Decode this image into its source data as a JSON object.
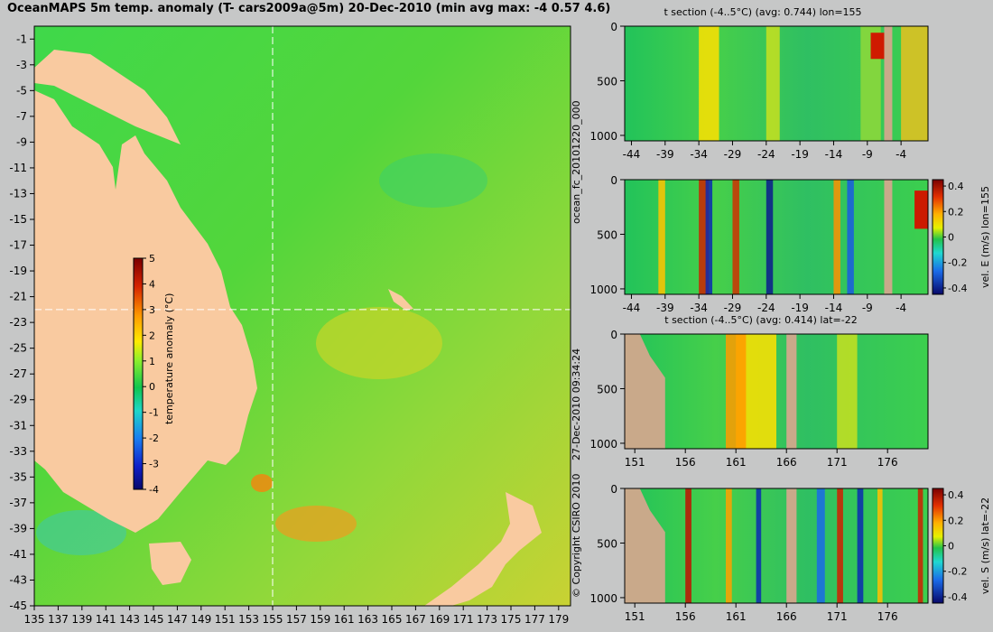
{
  "title": "OceanMAPS 5m temp. anomaly (T- cars2009a@5m) 20-Dec-2010 (min avg max: -4 0.57 4.6)",
  "side_labels": {
    "run_id": "ocean_fc_20101220_000",
    "generated": "27-Dec-2010 09:34:24",
    "copyright": "© Copyright CSIRO 2010"
  },
  "colors": {
    "land": "#f9caa0",
    "section_land": "#c9a98a",
    "background": "#c6c7c7",
    "crosshair": "#ffffff"
  },
  "chart_data": [
    {
      "type": "heatmap",
      "name": "map",
      "title": "OceanMAPS 5m temp. anomaly (T- cars2009a@5m) 20-Dec-2010 (min avg max: -4 0.57 4.6)",
      "x_ticks": [
        135,
        137,
        139,
        141,
        143,
        145,
        147,
        149,
        151,
        153,
        155,
        157,
        159,
        161,
        163,
        165,
        167,
        169,
        171,
        173,
        175,
        177,
        179
      ],
      "y_ticks": [
        -1,
        -3,
        -5,
        -7,
        -9,
        -11,
        -13,
        -15,
        -17,
        -19,
        -21,
        -23,
        -25,
        -27,
        -29,
        -31,
        -33,
        -35,
        -37,
        -39,
        -41,
        -43,
        -45
      ],
      "xlim": [
        135,
        180
      ],
      "ylim": [
        -45,
        0
      ],
      "crosshair": {
        "lon": 155,
        "lat": -22
      },
      "colorbar": {
        "label": "temperature anomaly (°C)",
        "ticks": [
          5,
          4,
          3,
          2,
          1,
          0,
          -1,
          -2,
          -3,
          -4
        ],
        "range": [
          -4,
          5
        ]
      }
    },
    {
      "type": "heatmap",
      "name": "section-1",
      "title": "t section (-4..5°C) (avg: 0.744) lon=155",
      "x_ticks": [
        -44,
        -39,
        -34,
        -29,
        -24,
        -19,
        -14,
        -9,
        -4
      ],
      "xlim": [
        -45,
        0
      ],
      "y_ticks": [
        0,
        500,
        1000
      ],
      "ylim": [
        1050,
        0
      ]
    },
    {
      "type": "heatmap",
      "name": "section-2",
      "title": "",
      "x_ticks": [
        -44,
        -39,
        -34,
        -29,
        -24,
        -19,
        -14,
        -9,
        -4
      ],
      "xlim": [
        -45,
        0
      ],
      "y_ticks": [
        0,
        500,
        1000
      ],
      "ylim": [
        1050,
        0
      ],
      "colorbar": {
        "label": "vel. E (m/s) lon=155",
        "ticks": [
          0.4,
          0.2,
          0,
          -0.2,
          -0.4
        ],
        "range": [
          -0.45,
          0.45
        ]
      }
    },
    {
      "type": "heatmap",
      "name": "section-3",
      "title": "t section (-4..5°C) (avg: 0.414) lat=-22",
      "x_ticks": [
        151,
        156,
        161,
        166,
        171,
        176
      ],
      "xlim": [
        150,
        180
      ],
      "y_ticks": [
        0,
        500,
        1000
      ],
      "ylim": [
        1050,
        0
      ]
    },
    {
      "type": "heatmap",
      "name": "section-4",
      "title": "",
      "x_ticks": [
        151,
        156,
        161,
        166,
        171,
        176
      ],
      "xlim": [
        150,
        180
      ],
      "y_ticks": [
        0,
        500,
        1000
      ],
      "ylim": [
        1050,
        0
      ],
      "colorbar": {
        "label": "vel. S (m/s) lat=-22",
        "ticks": [
          0.4,
          0.2,
          0,
          -0.2,
          -0.4
        ],
        "range": [
          -0.45,
          0.45
        ]
      }
    }
  ]
}
